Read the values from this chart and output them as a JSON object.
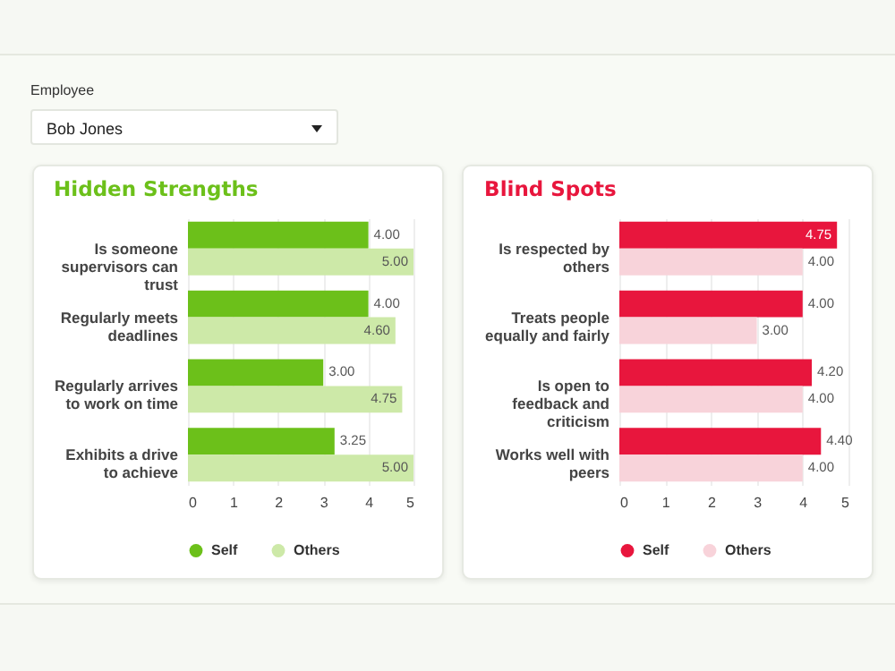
{
  "chart_data": [
    {
      "type": "other",
      "title": "Employee",
      "annotations": [
        "Bob Jones"
      ]
    },
    {
      "type": "bar",
      "orientation": "horizontal",
      "title": "Hidden Strengths",
      "categories": [
        "Is someone supervisors can trust",
        "Regularly meets deadlines",
        "Regularly arrives to work on time",
        "Exhibits a drive to achieve"
      ],
      "series": [
        {
          "name": "Self",
          "color": "#6cc01a",
          "values": [
            4.0,
            4.0,
            3.0,
            3.25
          ],
          "value_labels": [
            "4.00",
            "4.00",
            "3.00",
            "3.25"
          ]
        },
        {
          "name": "Others",
          "color": "#cde9a8",
          "values": [
            5.0,
            4.6,
            4.75,
            5.0
          ],
          "value_labels": [
            "5.00",
            "4.60",
            "4.75",
            "5.00"
          ]
        }
      ],
      "xlim": [
        0,
        5
      ],
      "xticks": [
        0,
        1,
        2,
        3,
        4,
        5
      ],
      "grid": "x",
      "legend": "bottom"
    },
    {
      "type": "bar",
      "orientation": "horizontal",
      "title": "Blind Spots",
      "categories": [
        "Is respected by others",
        "Treats people equally and fairly",
        "Is open to feedback and criticism",
        "Works well with peers"
      ],
      "series": [
        {
          "name": "Self",
          "color": "#e8163d",
          "values": [
            4.75,
            4.0,
            4.2,
            4.4
          ],
          "value_labels": [
            "4.75",
            "4.00",
            "4.20",
            "4.40"
          ]
        },
        {
          "name": "Others",
          "color": "#f8d3da",
          "values": [
            4.0,
            3.0,
            4.0,
            4.0
          ],
          "value_labels": [
            "4.00",
            "3.00",
            "4.00",
            "4.00"
          ]
        }
      ],
      "xlim": [
        0,
        5
      ],
      "xticks": [
        0,
        1,
        2,
        3,
        4,
        5
      ],
      "grid": "x",
      "legend": "bottom"
    }
  ]
}
